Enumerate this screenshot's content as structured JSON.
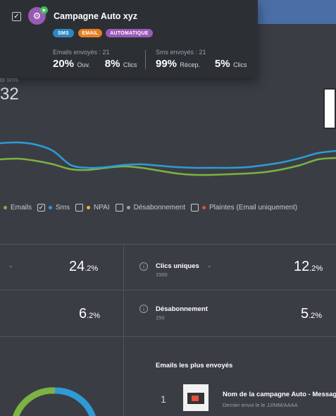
{
  "card": {
    "title": "Campagne Auto xyz",
    "tags": [
      "SMS",
      "EMAIL",
      "AUTOMATIQUE"
    ],
    "emails_label": "Emails envoyés : 21",
    "emails_open_value": "20%",
    "emails_open_unit": "Ouv.",
    "emails_click_value": "8%",
    "emails_click_unit": "Clics",
    "sms_label": "Sms envoyés : 21",
    "sms_reception_value": "99%",
    "sms_reception_unit": "Récep.",
    "sms_click_value": "5%",
    "sms_click_unit": "Clics"
  },
  "chart_header": {
    "label": "oi sms",
    "value": "32"
  },
  "legend": [
    {
      "label": "Emails",
      "checked": true,
      "color": "#7cb342"
    },
    {
      "label": "Sms",
      "checked": true,
      "color": "#2e9bd6"
    },
    {
      "label": "NPAI",
      "checked": false,
      "color": "#f0b429"
    },
    {
      "label": "Désabonnement",
      "checked": false,
      "color": "#9e9e9e"
    },
    {
      "label": "Plaintes (Email uniquement)",
      "checked": false,
      "color": "#e74c3c"
    }
  ],
  "chart_data": {
    "type": "line",
    "series": [
      {
        "name": "Emails",
        "color": "#7cb342",
        "values": [
          226,
          225,
          228,
          233,
          240,
          241,
          238,
          236,
          238,
          242,
          246,
          248,
          248,
          247,
          246,
          244,
          240,
          234,
          226,
          224
        ]
      },
      {
        "name": "Sms",
        "color": "#2e9bd6",
        "values": [
          203,
          202,
          205,
          214,
          234,
          238,
          237,
          234,
          233,
          235,
          237,
          238,
          238,
          238,
          237,
          234,
          230,
          224,
          217,
          214
        ]
      }
    ]
  },
  "stats": {
    "top_left_value": "24",
    "top_left_unit": ".2%",
    "top_right_title": "Clics uniques",
    "top_right_sub": "1500",
    "top_right_value": "12",
    "top_right_unit": ".2%",
    "mid_left_value": "6",
    "mid_left_unit": ".2%",
    "mid_right_title": "Désabonnement",
    "mid_right_sub": "150",
    "mid_right_value": "5",
    "mid_right_unit": ".2%"
  },
  "most_sent": {
    "title": "Emails les plus envoyés",
    "rank": "1",
    "campaign_title": "Nom de la campagne Auto - Messag",
    "campaign_sub": "Dernier envoi le le JJ/MM/AAAA"
  },
  "donut": {
    "green": "#7cb342",
    "blue": "#2e9bd6"
  }
}
